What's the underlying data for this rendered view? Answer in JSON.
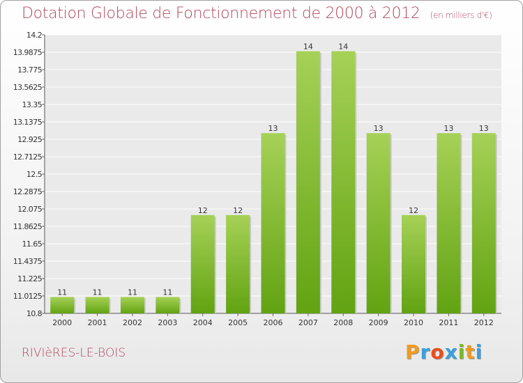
{
  "header": {
    "title": "Dotation Globale de Fonctionnement de 2000 à 2012",
    "subtitle": "(en milliers d'€)"
  },
  "footer": {
    "place": "RIVIèRES-LE-BOIS",
    "logo_letters": [
      "P",
      "r",
      "o",
      "x",
      "i",
      "t",
      "i"
    ],
    "logo_colors": [
      "#f39a1e",
      "#3aa0dc",
      "#e94e1b",
      "#3aa0dc",
      "#7ab929",
      "#f39a1e",
      "#3aa0dc"
    ]
  },
  "colors": {
    "bar_light": "#a6d157",
    "bar_dark": "#62a312",
    "axis_text": "#333333"
  },
  "chart_data": {
    "type": "bar",
    "title": "Dotation Globale de Fonctionnement de 2000 à 2012",
    "xlabel": "",
    "ylabel": "",
    "categories": [
      "2000",
      "2001",
      "2002",
      "2003",
      "2004",
      "2005",
      "2006",
      "2007",
      "2008",
      "2009",
      "2010",
      "2011",
      "2012"
    ],
    "values": [
      11,
      11,
      11,
      11,
      12,
      12,
      13,
      14,
      14,
      13,
      12,
      13,
      13
    ],
    "value_labels": [
      "11",
      "11",
      "11",
      "11",
      "12",
      "12",
      "13",
      "14",
      "14",
      "13",
      "12",
      "13",
      "13"
    ],
    "ylim": [
      10.8,
      14.2
    ],
    "yticks": [
      "10.8",
      "11.0125",
      "11.225",
      "11.4375",
      "11.65",
      "11.8625",
      "12.075",
      "12.2875",
      "12.5",
      "12.7125",
      "12.925",
      "13.1375",
      "13.35",
      "13.5625",
      "13.775",
      "13.9875",
      "14.2"
    ],
    "grid": true,
    "legend": "none"
  }
}
